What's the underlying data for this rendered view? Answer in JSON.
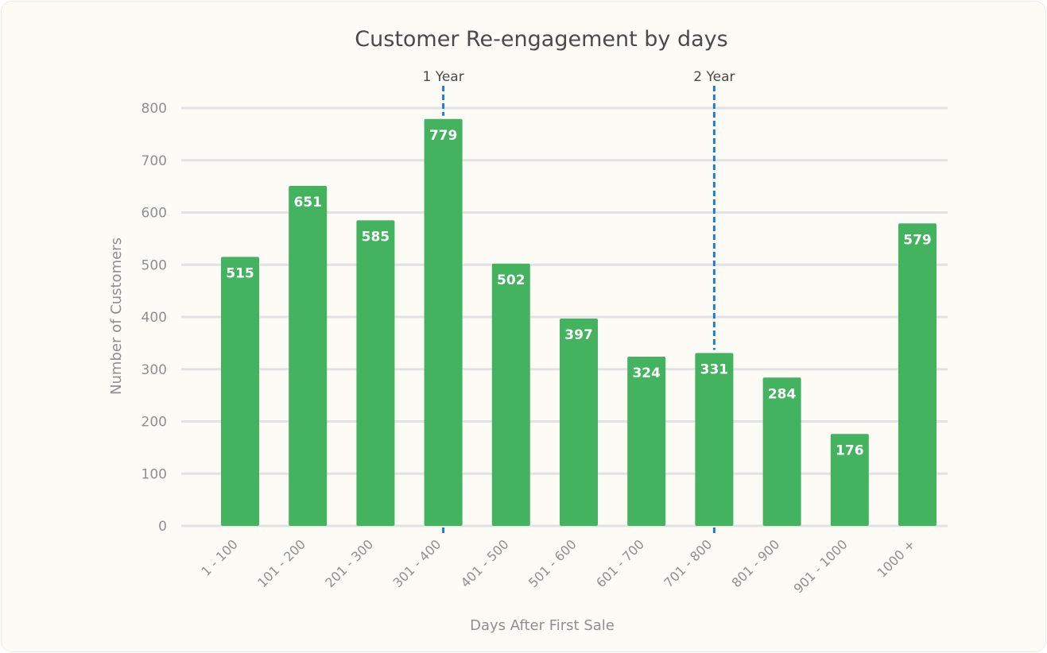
{
  "chart_data": {
    "type": "bar",
    "title": "Customer Re-engagement by days",
    "xlabel": "Days After First Sale",
    "ylabel": "Number of Customers",
    "ylim": [
      0,
      800
    ],
    "yticks": [
      0,
      100,
      200,
      300,
      400,
      500,
      600,
      700,
      800
    ],
    "categories": [
      "1 - 100",
      "101 - 200",
      "201 - 300",
      "301 - 400",
      "401 - 500",
      "501 - 600",
      "601 - 700",
      "701 - 800",
      "801 - 900",
      "901 - 1000",
      "1000 +"
    ],
    "values": [
      515,
      651,
      585,
      779,
      502,
      397,
      324,
      331,
      284,
      176,
      579
    ],
    "data_labels": true,
    "grid": true,
    "bar_color": "#44b360",
    "reference_lines": [
      {
        "label": "1 Year",
        "at_category": "301 - 400",
        "color": "#1c7fd1",
        "style": "dashed"
      },
      {
        "label": "2 Year",
        "at_category": "701 - 800",
        "color": "#1c7fd1",
        "style": "dashed"
      }
    ]
  }
}
